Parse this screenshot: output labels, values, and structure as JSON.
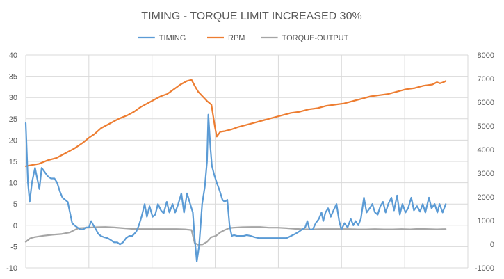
{
  "chart_data": {
    "type": "line",
    "title": "TIMING - TORQUE LIMIT INCREASED 30%",
    "xlabel": "",
    "ylabel": "",
    "y_left": {
      "lim": [
        -10,
        40
      ],
      "ticks": [
        "-10",
        "-5",
        "0",
        "5",
        "10",
        "15",
        "20",
        "25",
        "30",
        "35",
        "40"
      ]
    },
    "y_right": {
      "lim": [
        -1000,
        8000
      ],
      "ticks": [
        "-1000",
        "0",
        "1000",
        "2000",
        "3000",
        "4000",
        "5000",
        "6000",
        "7000",
        "8000"
      ]
    },
    "x": {
      "lim": [
        0,
        100
      ],
      "vertical_gridlines": [
        0,
        14.28,
        28.57,
        42.86,
        57.14,
        71.43,
        85.71,
        100
      ]
    },
    "grid": true,
    "legend_position": "top",
    "colors": {
      "TIMING": "#5b9bd5",
      "RPM": "#ed7d31",
      "TORQUE-OUTPUT": "#a5a5a5",
      "grid": "#d9d9d9",
      "text": "#595959"
    },
    "series": [
      {
        "name": "TIMING",
        "axis": "left",
        "points": [
          [
            0,
            24
          ],
          [
            0.5,
            10
          ],
          [
            0.9,
            5.5
          ],
          [
            1.4,
            10
          ],
          [
            2.1,
            13.5
          ],
          [
            2.6,
            11
          ],
          [
            3.1,
            8.5
          ],
          [
            3.6,
            13.5
          ],
          [
            4.3,
            12.5
          ],
          [
            5,
            11.5
          ],
          [
            5.7,
            11
          ],
          [
            6.5,
            11
          ],
          [
            7.1,
            10
          ],
          [
            7.7,
            8
          ],
          [
            8.3,
            6.5
          ],
          [
            8.9,
            6
          ],
          [
            9.5,
            5.5
          ],
          [
            10,
            3
          ],
          [
            10.5,
            0.5
          ],
          [
            11,
            0
          ],
          [
            11.7,
            -0.5
          ],
          [
            12.4,
            -1
          ],
          [
            13,
            -1
          ],
          [
            13.6,
            -0.5
          ],
          [
            14.3,
            -0.5
          ],
          [
            14.8,
            1
          ],
          [
            15.3,
            0
          ],
          [
            15.9,
            -1
          ],
          [
            16.4,
            -2
          ],
          [
            17,
            -2.5
          ],
          [
            17.7,
            -2.8
          ],
          [
            18.5,
            -3
          ],
          [
            19.3,
            -3.5
          ],
          [
            20,
            -4
          ],
          [
            20.7,
            -4
          ],
          [
            21.3,
            -4.5
          ],
          [
            22,
            -4
          ],
          [
            22.7,
            -3
          ],
          [
            23.4,
            -2.5
          ],
          [
            24.1,
            -2.5
          ],
          [
            25,
            -1.5
          ],
          [
            25.6,
            0
          ],
          [
            26.2,
            2
          ],
          [
            26.9,
            5
          ],
          [
            27.4,
            2
          ],
          [
            28,
            4.5
          ],
          [
            28.7,
            2
          ],
          [
            29.3,
            2.5
          ],
          [
            29.9,
            5
          ],
          [
            30.6,
            3.5
          ],
          [
            31.2,
            2.8
          ],
          [
            31.9,
            5.5
          ],
          [
            32.5,
            3
          ],
          [
            33.2,
            5
          ],
          [
            33.8,
            3
          ],
          [
            34.5,
            5
          ],
          [
            35.2,
            7.5
          ],
          [
            35.8,
            3
          ],
          [
            36.5,
            7.5
          ],
          [
            37.2,
            5
          ],
          [
            37.8,
            3
          ],
          [
            38.2,
            -3
          ],
          [
            38.7,
            -8.5
          ],
          [
            39.2,
            -5
          ],
          [
            39.9,
            5
          ],
          [
            40.5,
            9
          ],
          [
            41,
            15
          ],
          [
            41.3,
            26
          ],
          [
            41.8,
            18
          ],
          [
            42.1,
            14
          ],
          [
            42.6,
            12
          ],
          [
            43.2,
            10
          ],
          [
            43.9,
            8
          ],
          [
            44.5,
            6
          ],
          [
            45,
            5.5
          ],
          [
            45.6,
            6
          ],
          [
            46.1,
            0
          ],
          [
            46.6,
            -2.5
          ],
          [
            47.1,
            -2.3
          ],
          [
            47.8,
            -2.5
          ],
          [
            48.5,
            -2.5
          ],
          [
            49.3,
            -2.5
          ],
          [
            50,
            -2.3
          ],
          [
            50.9,
            -2.5
          ],
          [
            51.8,
            -2.8
          ],
          [
            52.7,
            -3
          ],
          [
            53.6,
            -3
          ],
          [
            55.4,
            -3
          ],
          [
            57.1,
            -3
          ],
          [
            59,
            -3
          ],
          [
            60,
            -2.5
          ],
          [
            61,
            -2
          ],
          [
            61.8,
            -1.5
          ],
          [
            62.5,
            -1
          ],
          [
            63.2,
            -0.5
          ],
          [
            63.7,
            1
          ],
          [
            64.2,
            -1
          ],
          [
            64.9,
            -1
          ],
          [
            65.6,
            0.5
          ],
          [
            66.3,
            1.5
          ],
          [
            66.9,
            3
          ],
          [
            67.3,
            1
          ],
          [
            67.8,
            3
          ],
          [
            68.4,
            4
          ],
          [
            69,
            2
          ],
          [
            69.6,
            3.5
          ],
          [
            70.3,
            5
          ],
          [
            70.9,
            1
          ],
          [
            71.4,
            -1
          ],
          [
            72.1,
            0.5
          ],
          [
            72.8,
            -0.5
          ],
          [
            73.5,
            1.5
          ],
          [
            74.1,
            0
          ],
          [
            74.6,
            1
          ],
          [
            75.2,
            0
          ],
          [
            75.8,
            1.5
          ],
          [
            76.5,
            6.5
          ],
          [
            77.1,
            3
          ],
          [
            77.8,
            4
          ],
          [
            78.4,
            5
          ],
          [
            79,
            3
          ],
          [
            79.6,
            2.5
          ],
          [
            80.2,
            4.5
          ],
          [
            80.8,
            5.5
          ],
          [
            81.4,
            3
          ],
          [
            82,
            5
          ],
          [
            82.7,
            6.5
          ],
          [
            83.3,
            3.5
          ],
          [
            84,
            7
          ],
          [
            84.6,
            2.5
          ],
          [
            85.2,
            5
          ],
          [
            85.9,
            3
          ],
          [
            86.5,
            4
          ],
          [
            87.2,
            6.5
          ],
          [
            87.8,
            3.5
          ],
          [
            88.5,
            4.5
          ],
          [
            89.2,
            3.2
          ],
          [
            89.8,
            5
          ],
          [
            90.4,
            3
          ],
          [
            91.2,
            6.5
          ],
          [
            91.8,
            4
          ],
          [
            92.5,
            5
          ],
          [
            93.1,
            3
          ],
          [
            93.6,
            5
          ],
          [
            94.3,
            3
          ],
          [
            95,
            5
          ]
        ]
      },
      {
        "name": "RPM",
        "axis": "right",
        "points": [
          [
            0,
            3300
          ],
          [
            1.5,
            3350
          ],
          [
            3,
            3400
          ],
          [
            5,
            3550
          ],
          [
            7,
            3650
          ],
          [
            9,
            3850
          ],
          [
            11,
            4050
          ],
          [
            13,
            4300
          ],
          [
            14.3,
            4500
          ],
          [
            15.5,
            4650
          ],
          [
            17,
            4900
          ],
          [
            19,
            5100
          ],
          [
            21,
            5300
          ],
          [
            23,
            5450
          ],
          [
            24.5,
            5600
          ],
          [
            26,
            5800
          ],
          [
            27.5,
            5950
          ],
          [
            29,
            6100
          ],
          [
            30.5,
            6250
          ],
          [
            32,
            6350
          ],
          [
            33.5,
            6550
          ],
          [
            35,
            6750
          ],
          [
            36.5,
            6900
          ],
          [
            37.5,
            6950
          ],
          [
            38.2,
            6700
          ],
          [
            39,
            6450
          ],
          [
            40,
            6250
          ],
          [
            41,
            6050
          ],
          [
            42,
            5900
          ],
          [
            42.8,
            4950
          ],
          [
            43.2,
            4550
          ],
          [
            44,
            4750
          ],
          [
            45,
            4780
          ],
          [
            46.5,
            4850
          ],
          [
            48,
            4950
          ],
          [
            50,
            5050
          ],
          [
            52,
            5150
          ],
          [
            54,
            5250
          ],
          [
            56,
            5350
          ],
          [
            58,
            5450
          ],
          [
            60,
            5550
          ],
          [
            62,
            5600
          ],
          [
            64,
            5700
          ],
          [
            66,
            5750
          ],
          [
            68,
            5850
          ],
          [
            70,
            5900
          ],
          [
            72,
            5950
          ],
          [
            74,
            6050
          ],
          [
            76,
            6150
          ],
          [
            78,
            6250
          ],
          [
            80,
            6300
          ],
          [
            82,
            6350
          ],
          [
            84,
            6450
          ],
          [
            86,
            6550
          ],
          [
            88,
            6600
          ],
          [
            90,
            6700
          ],
          [
            92,
            6750
          ],
          [
            93,
            6850
          ],
          [
            93.7,
            6800
          ],
          [
            94.5,
            6850
          ],
          [
            95,
            6900
          ]
        ]
      },
      {
        "name": "TORQUE-OUTPUT",
        "axis": "right",
        "points": [
          [
            0,
            100
          ],
          [
            1,
            250
          ],
          [
            2,
            300
          ],
          [
            4,
            360
          ],
          [
            6,
            400
          ],
          [
            8,
            430
          ],
          [
            10,
            500
          ],
          [
            11,
            600
          ],
          [
            12,
            680
          ],
          [
            14,
            700
          ],
          [
            16,
            720
          ],
          [
            18,
            730
          ],
          [
            20,
            710
          ],
          [
            22,
            680
          ],
          [
            24,
            650
          ],
          [
            26,
            640
          ],
          [
            28,
            640
          ],
          [
            30,
            640
          ],
          [
            32,
            640
          ],
          [
            34,
            640
          ],
          [
            36,
            630
          ],
          [
            37.5,
            600
          ],
          [
            38.2,
            50
          ],
          [
            39,
            -20
          ],
          [
            40,
            -10
          ],
          [
            41,
            100
          ],
          [
            42,
            300
          ],
          [
            43,
            350
          ],
          [
            44,
            500
          ],
          [
            45,
            600
          ],
          [
            46,
            680
          ],
          [
            47,
            700
          ],
          [
            49,
            720
          ],
          [
            51,
            730
          ],
          [
            53,
            730
          ],
          [
            55,
            700
          ],
          [
            57,
            700
          ],
          [
            59,
            680
          ],
          [
            61,
            650
          ],
          [
            63,
            630
          ],
          [
            65,
            630
          ],
          [
            67,
            640
          ],
          [
            69,
            640
          ],
          [
            71,
            640
          ],
          [
            73,
            640
          ],
          [
            75,
            630
          ],
          [
            77,
            630
          ],
          [
            79,
            640
          ],
          [
            81,
            630
          ],
          [
            83,
            630
          ],
          [
            85,
            640
          ],
          [
            87,
            630
          ],
          [
            89,
            650
          ],
          [
            91,
            640
          ],
          [
            93,
            630
          ],
          [
            95,
            640
          ]
        ]
      }
    ]
  }
}
